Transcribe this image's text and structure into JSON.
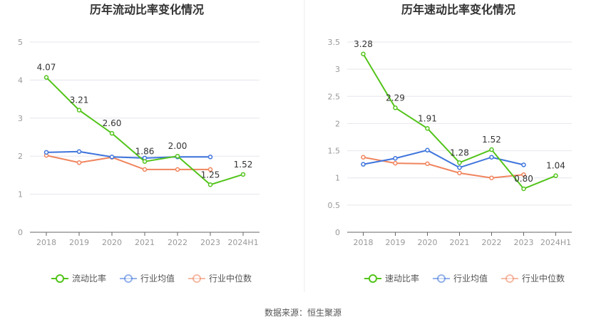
{
  "source_text": "数据来源：恒生聚源",
  "colors": {
    "main": "#52c41a",
    "avg": "#3e74dc",
    "median": "#f0855e"
  },
  "chart_data": [
    {
      "type": "line",
      "title": "历年流动比率变化情况",
      "categories": [
        "2018",
        "2019",
        "2020",
        "2021",
        "2022",
        "2023",
        "2024H1"
      ],
      "yticks": [
        "0",
        "1",
        "2",
        "3",
        "4",
        "5"
      ],
      "ylim": [
        0,
        5
      ],
      "series": [
        {
          "name": "流动比率",
          "values": [
            4.07,
            3.21,
            2.6,
            1.86,
            2.0,
            1.25,
            1.52
          ],
          "labels": [
            "4.07",
            "3.21",
            "2.60",
            "1.86",
            "2.00",
            "1.25",
            "1.52"
          ]
        },
        {
          "name": "行业均值",
          "values": [
            2.1,
            2.12,
            1.98,
            1.95,
            1.98,
            1.98,
            null
          ]
        },
        {
          "name": "行业中位数",
          "values": [
            2.02,
            1.83,
            1.97,
            1.65,
            1.65,
            1.65,
            null
          ]
        }
      ]
    },
    {
      "type": "line",
      "title": "历年速动比率变化情况",
      "categories": [
        "2018",
        "2019",
        "2020",
        "2021",
        "2022",
        "2023",
        "2024H1"
      ],
      "yticks": [
        "0",
        "0.5",
        "1",
        "1.5",
        "2",
        "2.5",
        "3",
        "3.5"
      ],
      "ylim": [
        0,
        3.5
      ],
      "series": [
        {
          "name": "速动比率",
          "values": [
            3.28,
            2.29,
            1.91,
            1.28,
            1.52,
            0.8,
            1.04
          ],
          "labels": [
            "3.28",
            "2.29",
            "1.91",
            "1.28",
            "1.52",
            "0.80",
            "1.04"
          ]
        },
        {
          "name": "行业均值",
          "values": [
            1.25,
            1.36,
            1.51,
            1.19,
            1.38,
            1.24,
            null
          ]
        },
        {
          "name": "行业中位数",
          "values": [
            1.38,
            1.27,
            1.26,
            1.09,
            1.0,
            1.06,
            null
          ]
        }
      ]
    }
  ]
}
